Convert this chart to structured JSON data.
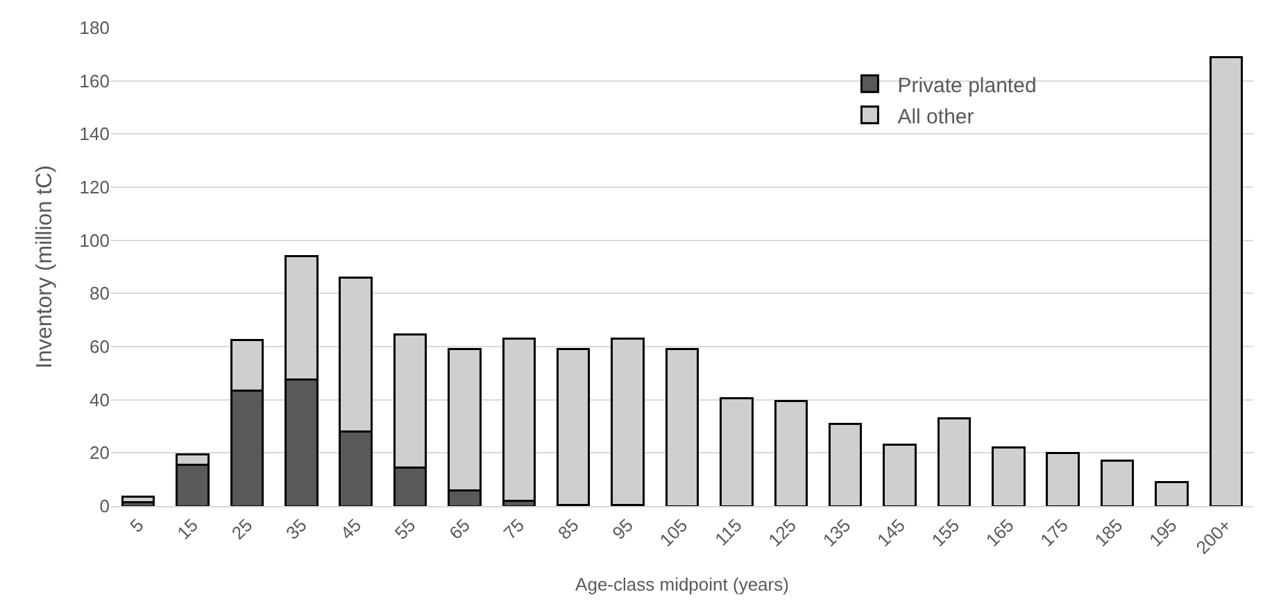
{
  "chart_data": {
    "type": "bar",
    "stacked": true,
    "xlabel": "Age-class midpoint (years)",
    "ylabel": "Inventory (million tC)",
    "categories": [
      "5",
      "15",
      "25",
      "35",
      "45",
      "55",
      "65",
      "75",
      "85",
      "95",
      "105",
      "115",
      "125",
      "135",
      "145",
      "155",
      "165",
      "175",
      "185",
      "195",
      "200+"
    ],
    "series": [
      {
        "name": "Private planted",
        "color": "#595959",
        "values": [
          1.5,
          15.5,
          43.5,
          47.5,
          28,
          14.5,
          6,
          2,
          0.5,
          0.5,
          0,
          0,
          0,
          0,
          0,
          0,
          0,
          0,
          0,
          0,
          0
        ]
      },
      {
        "name": "All other",
        "color": "#d0cece",
        "values": [
          2,
          4,
          19,
          46.5,
          58,
          50,
          53,
          61,
          58.5,
          62.5,
          59,
          40.5,
          39.5,
          31,
          23,
          33,
          22,
          20,
          17,
          9,
          169
        ]
      }
    ],
    "ylim": [
      0,
      180
    ],
    "yticks": [
      0,
      20,
      40,
      60,
      80,
      100,
      120,
      140,
      160,
      180
    ],
    "grid": "y",
    "legend": "top right"
  }
}
